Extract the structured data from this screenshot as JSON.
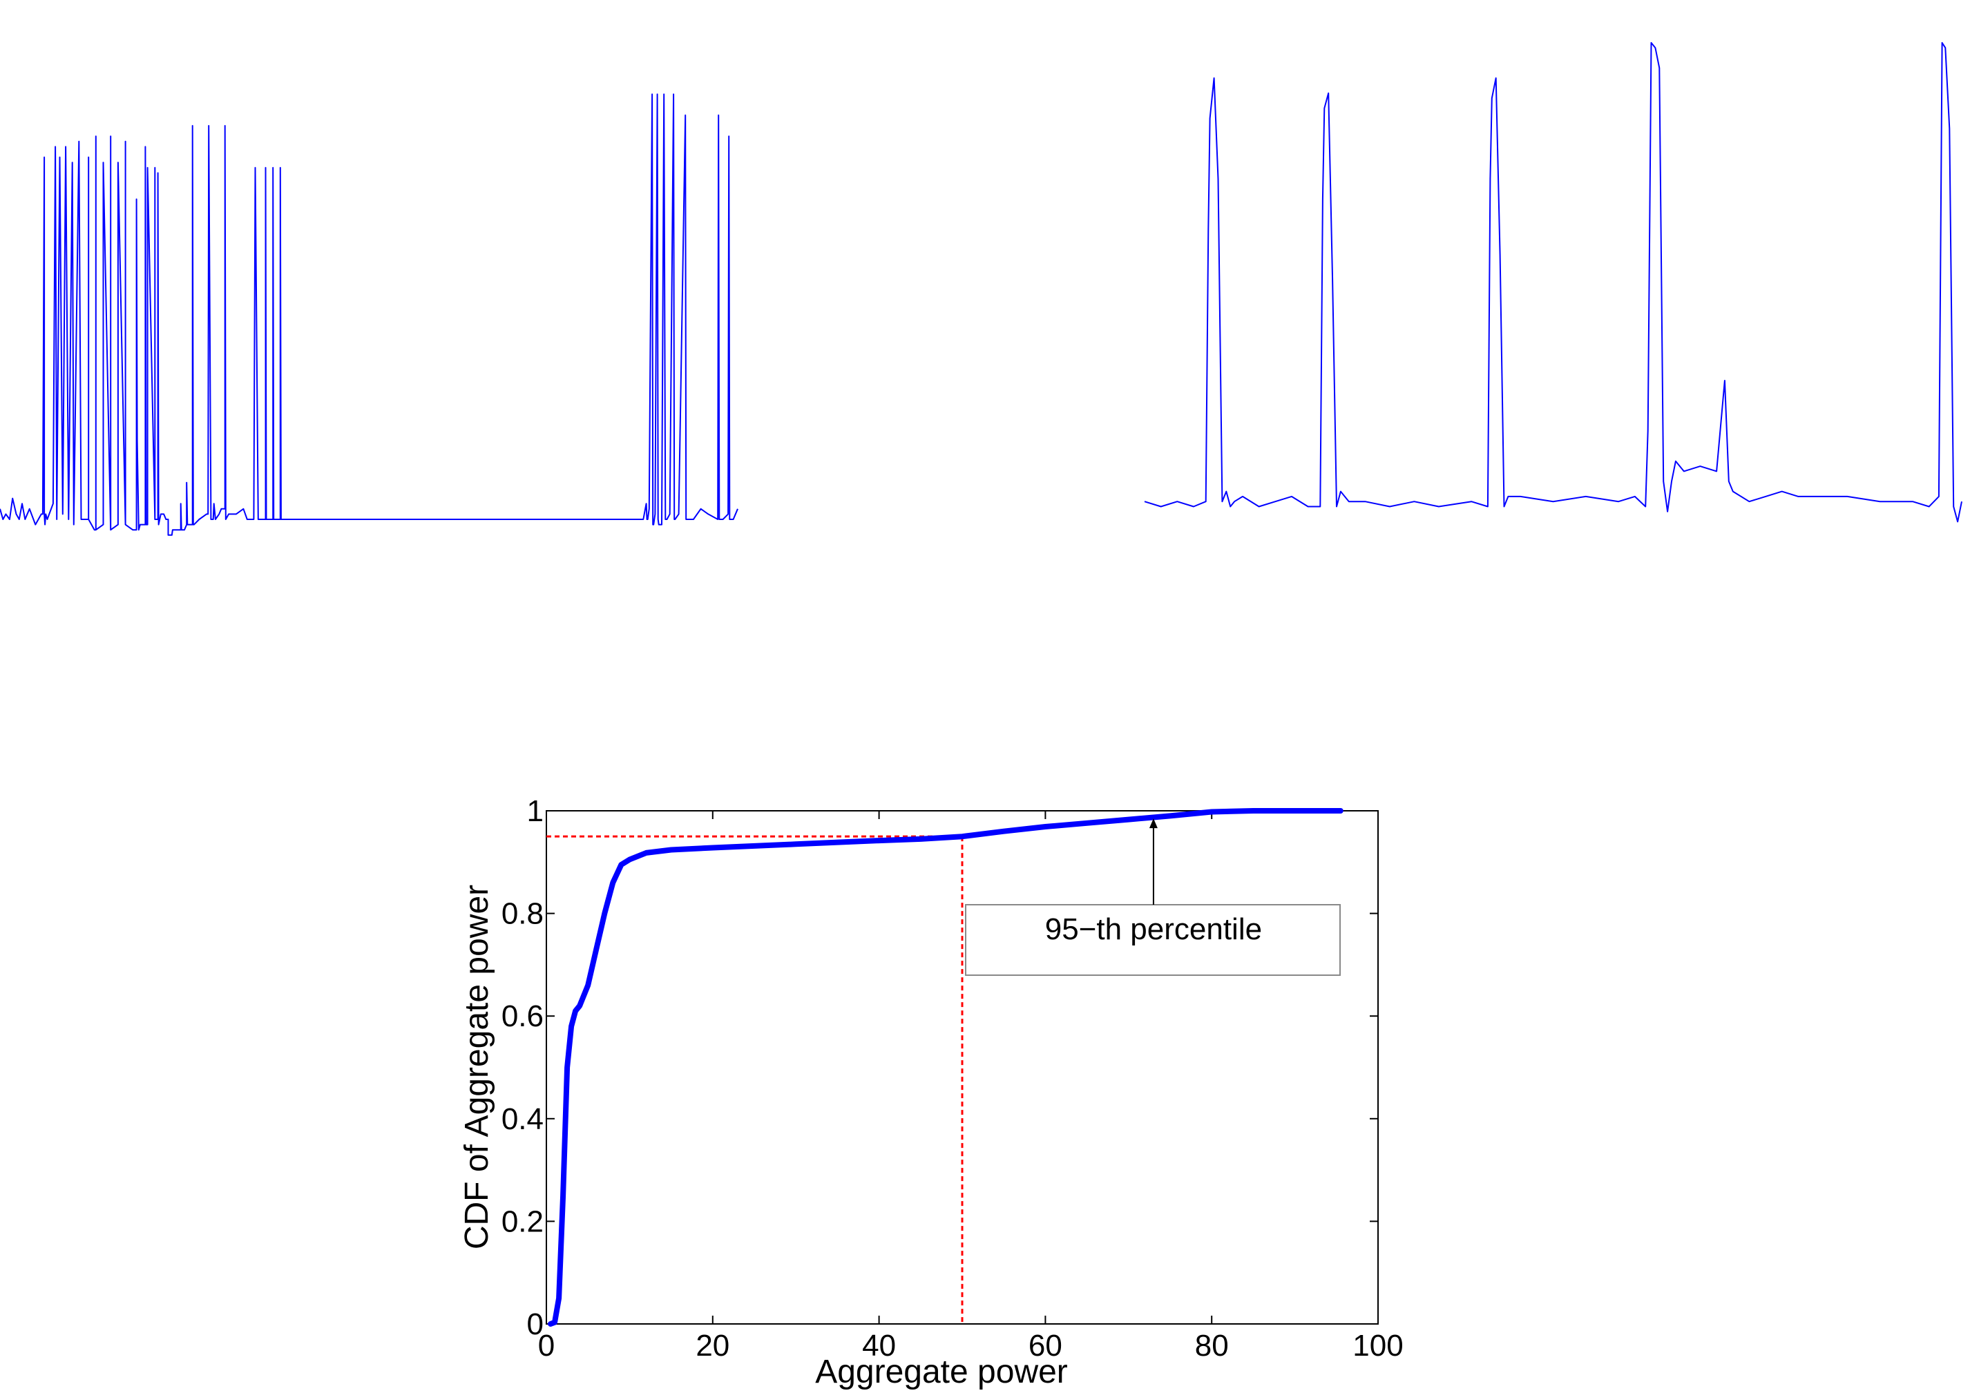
{
  "colors": {
    "trace": "#0000ff",
    "cdf_line": "#0000ff",
    "percentile_guide": "#ff0000",
    "axes": "#000000",
    "annotation_box": "#888888"
  },
  "chart_data": [
    {
      "type": "line",
      "title": "",
      "xlabel": "",
      "ylabel": "",
      "axes_visible": false,
      "grid": false,
      "ylim": [
        0,
        1
      ],
      "series": [
        {
          "x": [
            0.0,
            0.004,
            0.008,
            0.013,
            0.017,
            0.022,
            0.026,
            0.03,
            0.034,
            0.04,
            0.048,
            0.056,
            0.058,
            0.06,
            0.06,
            0.061,
            0.062,
            0.064,
            0.072,
            0.075,
            0.077,
            0.081,
            0.085,
            0.089,
            0.093,
            0.098,
            0.1,
            0.107,
            0.11,
            0.12,
            0.12,
            0.12,
            0.128,
            0.13,
            0.13,
            0.13,
            0.14,
            0.14,
            0.15,
            0.15,
            0.15,
            0.16,
            0.16,
            0.17,
            0.17,
            0.17,
            0.18,
            0.185,
            0.185,
            0.186,
            0.188,
            0.19,
            0.197,
            0.197,
            0.198,
            0.2,
            0.2,
            0.21,
            0.21,
            0.21,
            0.214,
            0.214,
            0.215,
            0.218,
            0.222,
            0.225,
            0.228,
            0.228,
            0.229,
            0.233,
            0.233,
            0.234,
            0.237,
            0.24,
            0.24,
            0.245,
            0.245,
            0.246,
            0.25,
            0.253,
            0.253,
            0.254,
            0.257,
            0.261,
            0.261,
            0.262,
            0.263,
            0.27,
            0.28,
            0.282,
            0.283,
            0.286,
            0.289,
            0.29,
            0.292,
            0.297,
            0.3,
            0.301,
            0.305,
            0.305,
            0.306,
            0.31,
            0.32,
            0.33,
            0.335,
            0.344,
            0.346,
            0.35,
            0.356,
            0.36,
            0.36,
            0.361,
            0.364,
            0.37,
            0.37,
            0.371,
            0.374,
            0.38,
            0.38,
            0.381,
            0.383,
            0.385,
            0.39,
            0.39,
            0.4,
            0.41,
            0.42,
            0.44,
            0.45,
            0.455,
            0.47,
            0.49,
            0.5,
            0.55,
            0.6,
            0.65,
            0.7,
            0.75,
            0.8,
            0.82,
            0.84,
            0.86,
            0.87,
            0.872,
            0.876,
            0.877,
            0.878,
            0.88,
            0.884,
            0.885,
            0.886,
            0.888,
            0.891,
            0.892,
            0.893,
            0.897,
            0.9,
            0.902,
            0.904,
            0.908,
            0.913,
            0.914,
            0.915,
            0.92,
            0.929,
            0.93,
            0.931,
            0.94,
            0.95,
            0.96,
            0.973,
            0.974,
            0.975,
            0.98,
            0.987,
            0.988,
            0.989,
            0.994,
            1.0
          ],
          "y": [
            0.07,
            0.05,
            0.06,
            0.05,
            0.09,
            0.06,
            0.05,
            0.08,
            0.05,
            0.07,
            0.04,
            0.06,
            0.06,
            0.74,
            0.06,
            0.04,
            0.06,
            0.05,
            0.08,
            0.76,
            0.05,
            0.74,
            0.06,
            0.76,
            0.05,
            0.73,
            0.04,
            0.77,
            0.05,
            0.05,
            0.74,
            0.05,
            0.03,
            0.03,
            0.78,
            0.03,
            0.04,
            0.73,
            0.03,
            0.78,
            0.03,
            0.04,
            0.73,
            0.04,
            0.77,
            0.04,
            0.03,
            0.03,
            0.66,
            0.2,
            0.03,
            0.04,
            0.04,
            0.76,
            0.04,
            0.04,
            0.72,
            0.05,
            0.72,
            0.05,
            0.05,
            0.71,
            0.04,
            0.06,
            0.06,
            0.05,
            0.05,
            0.02,
            0.02,
            0.02,
            0.02,
            0.03,
            0.03,
            0.03,
            0.03,
            0.03,
            0.08,
            0.03,
            0.03,
            0.04,
            0.12,
            0.04,
            0.04,
            0.04,
            0.8,
            0.04,
            0.04,
            0.05,
            0.06,
            0.06,
            0.8,
            0.05,
            0.05,
            0.08,
            0.05,
            0.06,
            0.07,
            0.07,
            0.07,
            0.8,
            0.05,
            0.06,
            0.06,
            0.07,
            0.05,
            0.05,
            0.72,
            0.05,
            0.05,
            0.05,
            0.72,
            0.05,
            0.05,
            0.05,
            0.72,
            0.05,
            0.05,
            0.05,
            0.72,
            0.05,
            0.05,
            0.05,
            0.05,
            0.05,
            0.05,
            0.05,
            0.05,
            0.05,
            0.05,
            0.05,
            0.05,
            0.05,
            0.05,
            0.05,
            0.05,
            0.05,
            0.05,
            0.05,
            0.05,
            0.05,
            0.05,
            0.05,
            0.05,
            0.05,
            0.08,
            0.05,
            0.05,
            0.07,
            0.86,
            0.04,
            0.04,
            0.06,
            0.86,
            0.05,
            0.04,
            0.04,
            0.86,
            0.05,
            0.05,
            0.06,
            0.86,
            0.05,
            0.05,
            0.06,
            0.82,
            0.05,
            0.05,
            0.05,
            0.07,
            0.06,
            0.05,
            0.82,
            0.05,
            0.05,
            0.06,
            0.78,
            0.05,
            0.05,
            0.07
          ]
        }
      ]
    },
    {
      "type": "line",
      "title": "",
      "xlabel": "",
      "ylabel": "",
      "axes_visible": false,
      "grid": false,
      "ylim": [
        0,
        1
      ],
      "series": [
        {
          "x": [
            0.0,
            0.02,
            0.04,
            0.06,
            0.075,
            0.078,
            0.08,
            0.085,
            0.09,
            0.095,
            0.1,
            0.105,
            0.11,
            0.12,
            0.14,
            0.16,
            0.18,
            0.2,
            0.215,
            0.218,
            0.22,
            0.225,
            0.23,
            0.235,
            0.24,
            0.25,
            0.27,
            0.3,
            0.33,
            0.36,
            0.4,
            0.42,
            0.423,
            0.425,
            0.43,
            0.435,
            0.44,
            0.445,
            0.46,
            0.5,
            0.54,
            0.58,
            0.6,
            0.613,
            0.616,
            0.62,
            0.625,
            0.63,
            0.635,
            0.64,
            0.645,
            0.65,
            0.66,
            0.68,
            0.7,
            0.71,
            0.715,
            0.72,
            0.74,
            0.76,
            0.78,
            0.8,
            0.83,
            0.86,
            0.9,
            0.94,
            0.96,
            0.972,
            0.976,
            0.98,
            0.985,
            0.99,
            0.995,
            1.0
          ],
          "y": [
            0.06,
            0.05,
            0.06,
            0.05,
            0.06,
            0.6,
            0.82,
            0.9,
            0.7,
            0.06,
            0.08,
            0.05,
            0.06,
            0.07,
            0.05,
            0.06,
            0.07,
            0.05,
            0.05,
            0.66,
            0.84,
            0.87,
            0.5,
            0.05,
            0.08,
            0.06,
            0.06,
            0.05,
            0.06,
            0.05,
            0.06,
            0.05,
            0.7,
            0.86,
            0.9,
            0.55,
            0.05,
            0.07,
            0.07,
            0.06,
            0.07,
            0.06,
            0.07,
            0.05,
            0.2,
            0.97,
            0.96,
            0.92,
            0.1,
            0.04,
            0.1,
            0.14,
            0.12,
            0.13,
            0.12,
            0.3,
            0.1,
            0.08,
            0.06,
            0.07,
            0.08,
            0.07,
            0.07,
            0.07,
            0.06,
            0.06,
            0.05,
            0.07,
            0.97,
            0.96,
            0.8,
            0.05,
            0.02,
            0.06
          ]
        }
      ]
    },
    {
      "type": "line",
      "title": "",
      "xlabel": "Aggregate power",
      "ylabel": "CDF of Aggregate power",
      "xlim": [
        0,
        100
      ],
      "ylim": [
        0,
        1
      ],
      "xticks": [
        "0",
        "20",
        "40",
        "60",
        "80",
        "100"
      ],
      "yticks": [
        "0",
        "0.2",
        "0.4",
        "0.6",
        "0.8",
        "1"
      ],
      "grid": false,
      "series": [
        {
          "x": [
            0.5,
            1,
            1.5,
            2,
            2.5,
            3,
            3.5,
            4,
            5,
            6,
            7,
            8,
            9,
            10,
            12,
            15,
            20,
            30,
            40,
            45,
            50,
            55,
            60,
            65,
            70,
            75,
            80,
            85,
            90,
            95.5
          ],
          "y": [
            0,
            0.003,
            0.05,
            0.25,
            0.5,
            0.58,
            0.61,
            0.62,
            0.66,
            0.73,
            0.8,
            0.86,
            0.895,
            0.905,
            0.918,
            0.924,
            0.928,
            0.935,
            0.942,
            0.945,
            0.95,
            0.96,
            0.969,
            0.976,
            0.983,
            0.99,
            0.998,
            1,
            1,
            1
          ]
        }
      ],
      "reference_lines": {
        "percentile_y": 0.95,
        "percentile_x": 50
      },
      "annotation": {
        "text": "95−th percentile",
        "arrow_to_x": 73,
        "arrow_to_y": 0.985
      }
    }
  ]
}
